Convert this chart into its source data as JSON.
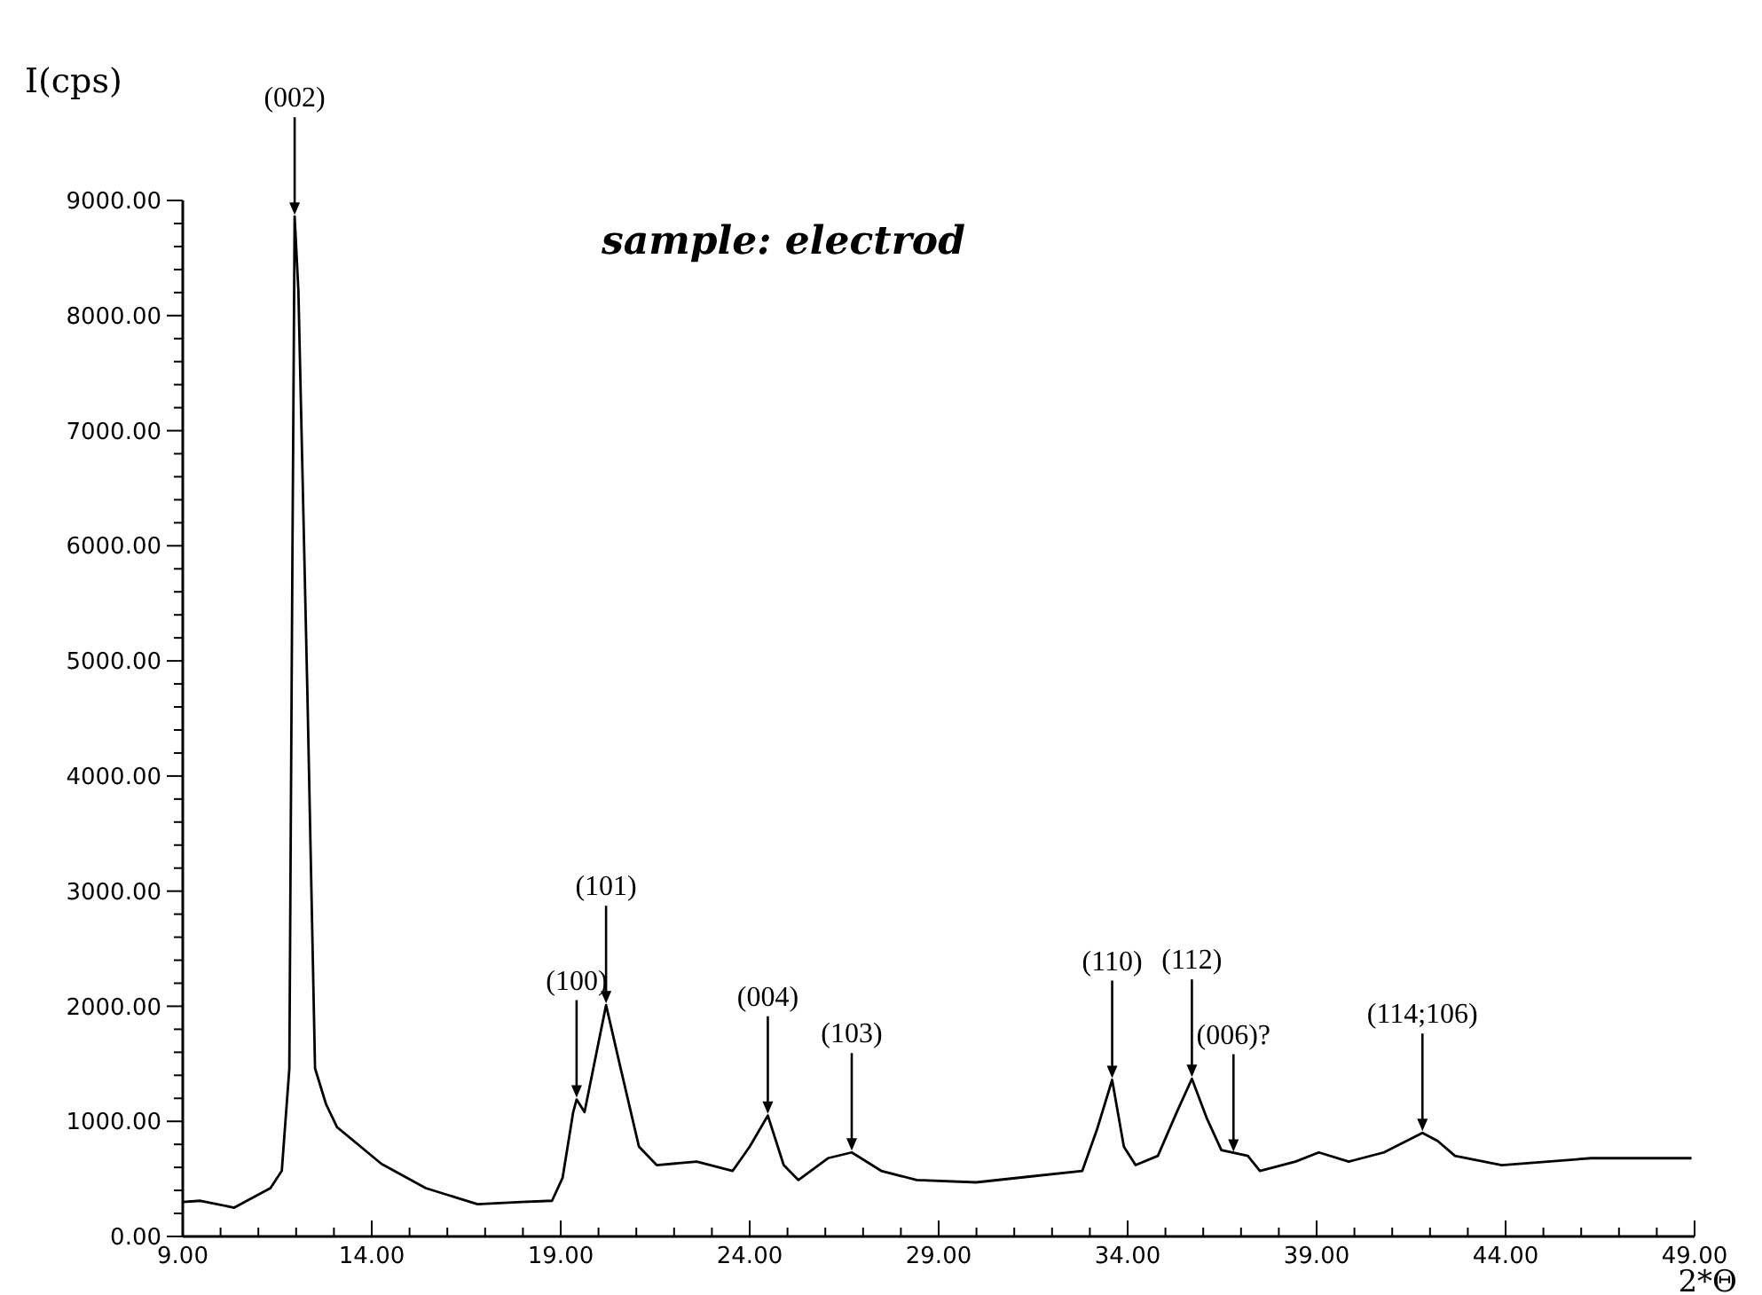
{
  "chart_data": {
    "type": "line",
    "xlabel": "2*Θ",
    "ylabel": "I(cps)",
    "xlim": [
      9,
      49
    ],
    "ylim": [
      0,
      9000
    ],
    "xticks": [
      {
        "value": 9,
        "label": "9.00"
      },
      {
        "value": 10,
        "label": null
      },
      {
        "value": 11,
        "label": null
      },
      {
        "value": 12,
        "label": null
      },
      {
        "value": 13,
        "label": null
      },
      {
        "value": 14,
        "label": "14.00"
      },
      {
        "value": 15,
        "label": null
      },
      {
        "value": 16,
        "label": null
      },
      {
        "value": 17,
        "label": null
      },
      {
        "value": 18,
        "label": null
      },
      {
        "value": 19,
        "label": "19.00"
      },
      {
        "value": 20,
        "label": null
      },
      {
        "value": 21,
        "label": null
      },
      {
        "value": 22,
        "label": null
      },
      {
        "value": 23,
        "label": null
      },
      {
        "value": 24,
        "label": "24.00"
      },
      {
        "value": 25,
        "label": null
      },
      {
        "value": 26,
        "label": null
      },
      {
        "value": 27,
        "label": null
      },
      {
        "value": 28,
        "label": null
      },
      {
        "value": 29,
        "label": "29.00"
      },
      {
        "value": 30,
        "label": null
      },
      {
        "value": 31,
        "label": null
      },
      {
        "value": 32,
        "label": null
      },
      {
        "value": 33,
        "label": null
      },
      {
        "value": 34,
        "label": "34.00"
      },
      {
        "value": 35,
        "label": null
      },
      {
        "value": 36,
        "label": null
      },
      {
        "value": 37,
        "label": null
      },
      {
        "value": 38,
        "label": null
      },
      {
        "value": 39,
        "label": "39.00"
      },
      {
        "value": 40,
        "label": null
      },
      {
        "value": 41,
        "label": null
      },
      {
        "value": 42,
        "label": null
      },
      {
        "value": 43,
        "label": null
      },
      {
        "value": 44,
        "label": "44.00"
      },
      {
        "value": 45,
        "label": null
      },
      {
        "value": 46,
        "label": null
      },
      {
        "value": 47,
        "label": null
      },
      {
        "value": 48,
        "label": null
      },
      {
        "value": 49,
        "label": "49.00"
      }
    ],
    "yticks": [
      {
        "value": 0,
        "label": "0.00"
      },
      {
        "value": 200,
        "label": null
      },
      {
        "value": 400,
        "label": null
      },
      {
        "value": 600,
        "label": null
      },
      {
        "value": 800,
        "label": null
      },
      {
        "value": 1000,
        "label": "1000.00"
      },
      {
        "value": 1200,
        "label": null
      },
      {
        "value": 1400,
        "label": null
      },
      {
        "value": 1600,
        "label": null
      },
      {
        "value": 1800,
        "label": null
      },
      {
        "value": 2000,
        "label": "2000.00"
      },
      {
        "value": 2200,
        "label": null
      },
      {
        "value": 2400,
        "label": null
      },
      {
        "value": 2600,
        "label": null
      },
      {
        "value": 2800,
        "label": null
      },
      {
        "value": 3000,
        "label": "3000.00"
      },
      {
        "value": 3200,
        "label": null
      },
      {
        "value": 3400,
        "label": null
      },
      {
        "value": 3600,
        "label": null
      },
      {
        "value": 3800,
        "label": null
      },
      {
        "value": 4000,
        "label": "4000.00"
      },
      {
        "value": 4200,
        "label": null
      },
      {
        "value": 4400,
        "label": null
      },
      {
        "value": 4600,
        "label": null
      },
      {
        "value": 4800,
        "label": null
      },
      {
        "value": 5000,
        "label": "5000.00"
      },
      {
        "value": 5200,
        "label": null
      },
      {
        "value": 5400,
        "label": null
      },
      {
        "value": 5600,
        "label": null
      },
      {
        "value": 5800,
        "label": null
      },
      {
        "value": 6000,
        "label": "6000.00"
      },
      {
        "value": 6200,
        "label": null
      },
      {
        "value": 6400,
        "label": null
      },
      {
        "value": 6600,
        "label": null
      },
      {
        "value": 6800,
        "label": null
      },
      {
        "value": 7000,
        "label": "7000.00"
      },
      {
        "value": 7200,
        "label": null
      },
      {
        "value": 7400,
        "label": null
      },
      {
        "value": 7600,
        "label": null
      },
      {
        "value": 7800,
        "label": null
      },
      {
        "value": 8000,
        "label": "8000.00"
      },
      {
        "value": 8200,
        "label": null
      },
      {
        "value": 8400,
        "label": null
      },
      {
        "value": 8600,
        "label": null
      },
      {
        "value": 8800,
        "label": null
      },
      {
        "value": 9000,
        "label": "9000.00"
      }
    ],
    "grid": false,
    "marker": "none",
    "line_style": "solid",
    "series": [
      {
        "color": "#000000",
        "x": [
          9.0,
          9.47,
          10.36,
          11.32,
          11.62,
          11.82,
          11.9,
          11.96,
          12.06,
          12.3,
          12.5,
          12.79,
          13.08,
          14.26,
          15.43,
          16.8,
          17.97,
          18.77,
          19.05,
          19.33,
          19.42,
          19.63,
          20.2,
          20.6,
          21.07,
          21.54,
          22.6,
          23.55,
          24.0,
          24.48,
          24.9,
          25.29,
          26.07,
          26.7,
          27.48,
          28.42,
          29.99,
          31.4,
          32.8,
          33.19,
          33.59,
          33.9,
          34.21,
          34.8,
          35.3,
          35.7,
          36.09,
          36.48,
          37.18,
          37.5,
          38.44,
          39.06,
          39.85,
          40.78,
          41.8,
          42.2,
          42.66,
          43.9,
          46.26,
          48.92
        ],
        "values": [
          300,
          310,
          250,
          420,
          570,
          1460,
          5840,
          8860,
          8210,
          4680,
          1460,
          1150,
          950,
          630,
          420,
          280,
          300,
          310,
          510,
          1080,
          1190,
          1080,
          2010,
          1440,
          780,
          620,
          650,
          570,
          780,
          1050,
          620,
          490,
          680,
          730,
          570,
          490,
          470,
          520,
          570,
          930,
          1360,
          780,
          620,
          700,
          1080,
          1370,
          1030,
          750,
          700,
          570,
          650,
          730,
          650,
          730,
          900,
          830,
          700,
          620,
          680,
          680
        ]
      }
    ],
    "annotations": [
      "sample: electrod",
      {
        "text": "(002)",
        "x": 11.96,
        "y": 8860
      },
      {
        "text": "(100)",
        "x": 19.42,
        "y": 1190
      },
      {
        "text": "(101)",
        "x": 20.2,
        "y": 2010
      },
      {
        "text": "(004)",
        "x": 24.48,
        "y": 1050
      },
      {
        "text": "(103)",
        "x": 26.7,
        "y": 730
      },
      {
        "text": "(110)",
        "x": 33.59,
        "y": 1360
      },
      {
        "text": "(112)",
        "x": 35.7,
        "y": 1370
      },
      {
        "text": "(006)?",
        "x": 36.8,
        "y": 720
      },
      {
        "text": "(114;106)",
        "x": 41.8,
        "y": 900
      }
    ]
  }
}
